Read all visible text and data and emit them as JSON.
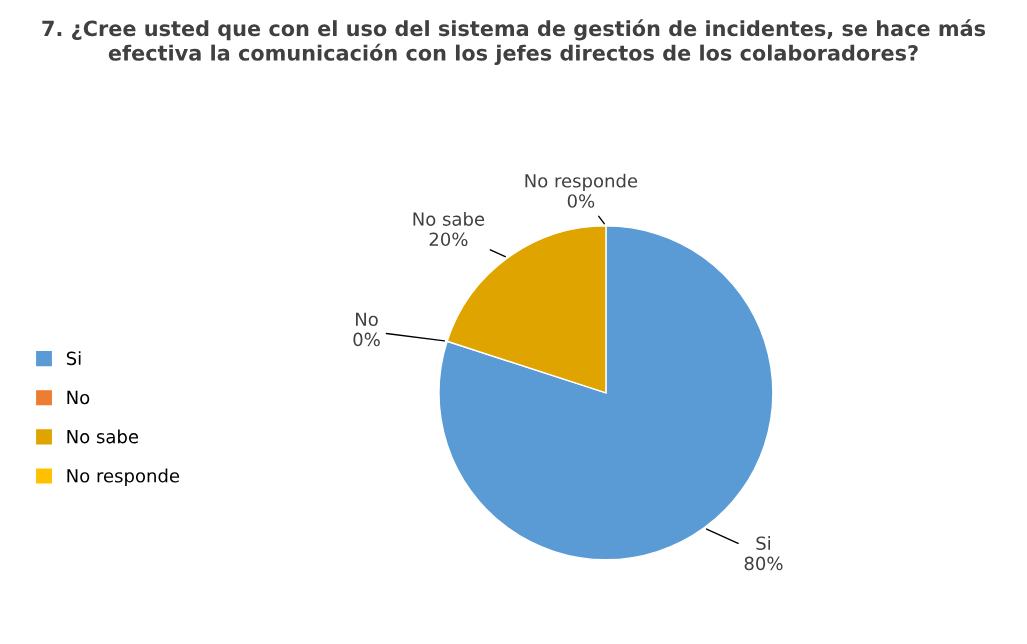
{
  "chart_data": {
    "type": "pie",
    "title": "7. ¿Cree usted que con el uso del sistema de gestión de incidentes, se hace más efectiva la comunicación con los jefes directos de los colaboradores?",
    "categories": [
      "Si",
      "No",
      "No sabe",
      "No responde"
    ],
    "values": [
      80,
      0,
      20,
      0
    ],
    "colors": [
      "#5b9bd5",
      "#ed7d31",
      "#e0a400",
      "#ffc000"
    ],
    "value_labels": [
      "80%",
      "0%",
      "20%",
      "0%"
    ],
    "legend": "left"
  }
}
